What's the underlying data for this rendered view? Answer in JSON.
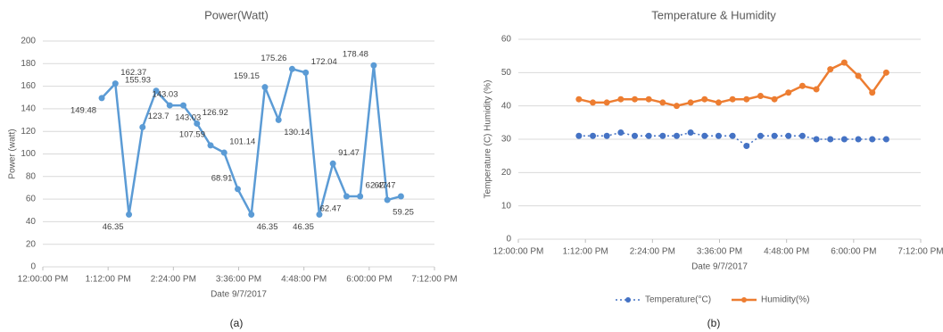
{
  "chart_data": [
    {
      "type": "line",
      "title": "Power(Watt)",
      "x_label": "Date 9/7/2017",
      "y_label": "Power (watt)",
      "caption": "(a)",
      "x": [
        65,
        80,
        95,
        110,
        125,
        140,
        155,
        170,
        185,
        200,
        215,
        230,
        245,
        260,
        275,
        290,
        305,
        320,
        335,
        350,
        365,
        380,
        395
      ],
      "values": [
        149.48,
        162.37,
        46.35,
        123.7,
        155.93,
        143.03,
        143.03,
        126.92,
        107.59,
        101.14,
        68.91,
        46.35,
        159.15,
        130.14,
        175.26,
        172.04,
        46.35,
        91.47,
        62.47,
        62.47,
        178.48,
        59.25,
        62.47
      ],
      "color": "#5b9bd5",
      "data_labels": true,
      "xlim": [
        0,
        432
      ],
      "xticks": [
        {
          "value": 0,
          "label": "12:00:00 PM"
        },
        {
          "value": 72,
          "label": "1:12:00 PM"
        },
        {
          "value": 144,
          "label": "2:24:00 PM"
        },
        {
          "value": 216,
          "label": "3:36:00 PM"
        },
        {
          "value": 288,
          "label": "4:48:00 PM"
        },
        {
          "value": 360,
          "label": "6:00:00 PM"
        },
        {
          "value": 432,
          "label": "7:12:00 PM"
        }
      ],
      "ylim": [
        0,
        200
      ],
      "yticks": [
        0,
        20,
        40,
        60,
        80,
        100,
        120,
        140,
        160,
        180,
        200
      ],
      "grid": true
    },
    {
      "type": "line",
      "title": "Temperature & Humidity",
      "x_label": "Date 9/7/2017",
      "y_label": "Temperature (C) Humidity (%)",
      "caption": "(b)",
      "x": [
        65,
        80,
        95,
        110,
        125,
        140,
        155,
        170,
        185,
        200,
        215,
        230,
        245,
        260,
        275,
        290,
        305,
        320,
        335,
        350,
        365,
        380,
        395
      ],
      "series": [
        {
          "name": "Temperature(°C)",
          "color": "#4472c4",
          "line_style": "dotted",
          "values": [
            31,
            31,
            31,
            32,
            31,
            31,
            31,
            31,
            32,
            31,
            31,
            31,
            28,
            31,
            31,
            31,
            31,
            30,
            30,
            30,
            30,
            30,
            30
          ]
        },
        {
          "name": "Humidity(%)",
          "color": "#ed7d31",
          "line_style": "solid",
          "values": [
            42,
            41,
            41,
            42,
            42,
            42,
            41,
            40,
            41,
            42,
            41,
            42,
            42,
            43,
            42,
            44,
            46,
            45,
            51,
            53,
            49,
            44,
            50
          ]
        }
      ],
      "xlim": [
        0,
        432
      ],
      "xticks": [
        {
          "value": 0,
          "label": "12:00:00 PM"
        },
        {
          "value": 72,
          "label": "1:12:00 PM"
        },
        {
          "value": 144,
          "label": "2:24:00 PM"
        },
        {
          "value": 216,
          "label": "3:36:00 PM"
        },
        {
          "value": 288,
          "label": "4:48:00 PM"
        },
        {
          "value": 360,
          "label": "6:00:00 PM"
        },
        {
          "value": 432,
          "label": "7:12:00 PM"
        }
      ],
      "ylim": [
        0,
        60
      ],
      "yticks": [
        0,
        10,
        20,
        30,
        40,
        50,
        60
      ],
      "grid": true,
      "legend": "bottom"
    }
  ]
}
